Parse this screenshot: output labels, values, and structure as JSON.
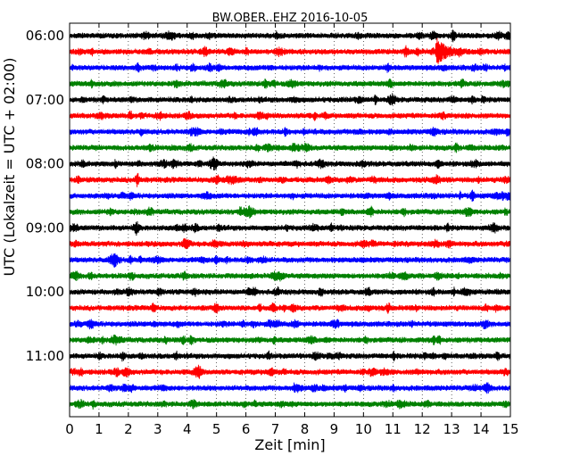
{
  "chart_data": {
    "type": "line",
    "title": "BW.OBER..EHZ 2016-10-05",
    "xlabel": "Zeit  [min]",
    "ylabel": "UTC (Lokalzeit = UTC + 02:00)",
    "xlim": [
      0,
      15
    ],
    "x_ticks": [
      "0",
      "1",
      "2",
      "3",
      "4",
      "5",
      "6",
      "7",
      "8",
      "9",
      "10",
      "11",
      "12",
      "13",
      "14",
      "15"
    ],
    "y_ticks": [
      "06:00",
      "07:00",
      "08:00",
      "09:00",
      "10:00",
      "11:00"
    ],
    "grid": "vertical dotted",
    "trace_interval_minutes": 15,
    "trace_colors": [
      "#000000",
      "#ff0000",
      "#0000ff",
      "#008000"
    ],
    "traces": [
      {
        "start": "06:00",
        "color": "#000000"
      },
      {
        "start": "06:15",
        "color": "#ff0000",
        "events": [
          {
            "minute": 12.6,
            "amplitude": 3.5
          }
        ]
      },
      {
        "start": "06:30",
        "color": "#0000ff"
      },
      {
        "start": "06:45",
        "color": "#008000"
      },
      {
        "start": "07:00",
        "color": "#000000"
      },
      {
        "start": "07:15",
        "color": "#ff0000"
      },
      {
        "start": "07:30",
        "color": "#0000ff"
      },
      {
        "start": "07:45",
        "color": "#008000"
      },
      {
        "start": "08:00",
        "color": "#000000"
      },
      {
        "start": "08:15",
        "color": "#ff0000"
      },
      {
        "start": "08:30",
        "color": "#0000ff"
      },
      {
        "start": "08:45",
        "color": "#008000"
      },
      {
        "start": "09:00",
        "color": "#000000"
      },
      {
        "start": "09:15",
        "color": "#ff0000"
      },
      {
        "start": "09:30",
        "color": "#0000ff"
      },
      {
        "start": "09:45",
        "color": "#008000"
      },
      {
        "start": "10:00",
        "color": "#000000"
      },
      {
        "start": "10:15",
        "color": "#ff0000"
      },
      {
        "start": "10:30",
        "color": "#0000ff"
      },
      {
        "start": "10:45",
        "color": "#008000"
      },
      {
        "start": "11:00",
        "color": "#000000"
      },
      {
        "start": "11:15",
        "color": "#ff0000"
      },
      {
        "start": "11:30",
        "color": "#0000ff"
      },
      {
        "start": "11:45",
        "color": "#008000"
      }
    ]
  }
}
